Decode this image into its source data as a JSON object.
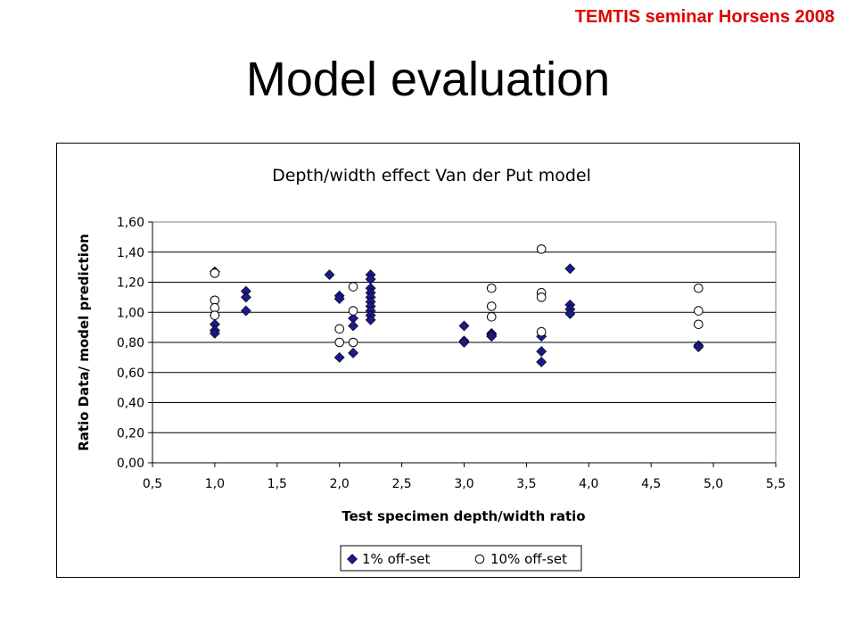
{
  "header": {
    "tag": "TEMTIS seminar Horsens 2008"
  },
  "slide": {
    "title": "Model evaluation"
  },
  "chart_data": {
    "type": "scatter",
    "title": "Depth/width effect Van der Put model",
    "xlabel": "Test specimen depth/width ratio",
    "ylabel": "Ratio Data/ model prediction",
    "xlim": [
      0.5,
      5.5
    ],
    "ylim": [
      0.0,
      1.6
    ],
    "x_ticks": [
      "0,5",
      "1,0",
      "1,5",
      "2,0",
      "2,5",
      "3,0",
      "3,5",
      "4,0",
      "4,5",
      "5,0",
      "5,5"
    ],
    "y_ticks": [
      "0,00",
      "0,20",
      "0,40",
      "0,60",
      "0,80",
      "1,00",
      "1,20",
      "1,40",
      "1,60"
    ],
    "grid": "horizontal",
    "legend_position": "bottom",
    "series": [
      {
        "name": "1% off-set",
        "marker": "diamond",
        "color": "#1a1a8c",
        "points": [
          [
            1.0,
            1.27
          ],
          [
            1.0,
            0.98
          ],
          [
            1.0,
            0.92
          ],
          [
            1.0,
            0.88
          ],
          [
            1.0,
            0.86
          ],
          [
            1.25,
            1.14
          ],
          [
            1.25,
            1.1
          ],
          [
            1.25,
            1.01
          ],
          [
            1.92,
            1.25
          ],
          [
            2.0,
            1.11
          ],
          [
            2.0,
            1.09
          ],
          [
            2.0,
            0.7
          ],
          [
            2.11,
            0.96
          ],
          [
            2.11,
            0.91
          ],
          [
            2.11,
            0.73
          ],
          [
            2.25,
            1.25
          ],
          [
            2.25,
            1.22
          ],
          [
            2.25,
            1.16
          ],
          [
            2.25,
            1.13
          ],
          [
            2.25,
            1.1
          ],
          [
            2.25,
            1.07
          ],
          [
            2.25,
            1.04
          ],
          [
            2.25,
            1.01
          ],
          [
            2.25,
            0.98
          ],
          [
            2.25,
            0.95
          ],
          [
            3.0,
            0.91
          ],
          [
            3.0,
            0.81
          ],
          [
            3.0,
            0.8
          ],
          [
            3.22,
            0.86
          ],
          [
            3.22,
            0.85
          ],
          [
            3.22,
            0.84
          ],
          [
            3.62,
            0.84
          ],
          [
            3.62,
            0.74
          ],
          [
            3.62,
            0.67
          ],
          [
            3.85,
            1.29
          ],
          [
            3.85,
            1.05
          ],
          [
            3.85,
            1.02
          ],
          [
            3.85,
            0.99
          ],
          [
            4.88,
            0.78
          ],
          [
            4.88,
            0.77
          ]
        ]
      },
      {
        "name": "10% off-set",
        "marker": "circle",
        "color": "#ffffff",
        "points": [
          [
            1.0,
            1.26
          ],
          [
            1.0,
            1.08
          ],
          [
            1.0,
            1.03
          ],
          [
            1.0,
            0.98
          ],
          [
            2.0,
            0.89
          ],
          [
            2.0,
            0.8
          ],
          [
            2.11,
            1.17
          ],
          [
            2.11,
            1.01
          ],
          [
            2.11,
            0.8
          ],
          [
            3.22,
            1.16
          ],
          [
            3.22,
            1.04
          ],
          [
            3.22,
            0.97
          ],
          [
            3.62,
            1.42
          ],
          [
            3.62,
            1.13
          ],
          [
            3.62,
            1.1
          ],
          [
            3.62,
            0.87
          ],
          [
            4.88,
            1.16
          ],
          [
            4.88,
            1.01
          ],
          [
            4.88,
            0.92
          ]
        ]
      }
    ]
  }
}
